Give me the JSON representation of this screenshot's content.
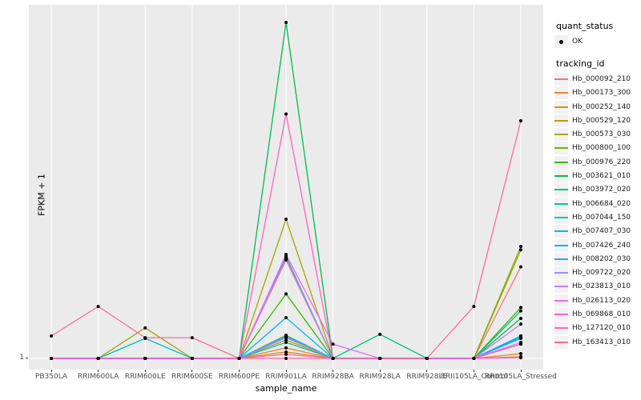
{
  "axes": {
    "y_title": "FPKM + 1",
    "x_title": "sample_name",
    "y_tick": "1"
  },
  "legend": {
    "quant_status": {
      "title": "quant_status",
      "items": [
        {
          "label": "OK",
          "symbol": "black-point"
        }
      ]
    },
    "tracking_id": {
      "title": "tracking_id"
    }
  },
  "colors": {
    "panel_background": "#EBEBEB",
    "gridline": "#FFFFFF",
    "point": "#000000",
    "axis_text": "#4d4d4d"
  },
  "chart_data": {
    "type": "line",
    "title": "",
    "xlabel": "sample_name",
    "ylabel": "FPKM + 1",
    "x_categories": [
      "PB350LA",
      "RRIM600LA",
      "RRIM600LE",
      "RRIM600SE",
      "RRIM600PE",
      "RRIM901LA",
      "RRIM928BA",
      "RRIM928LA",
      "RRIM928LE",
      "RRII105LA_Control",
      "RRII105LA_Stressed"
    ],
    "y_axis": {
      "tick_labels": [
        "1"
      ],
      "min": 1,
      "max_estimate": 100,
      "note": "only the tick '1' is labeled; values are relative estimates scaled so the tallest peak = 100"
    },
    "grid": "vertical-major-only",
    "legend_position": "right",
    "point_marker": {
      "shape": "filled-circle",
      "color": "#000000",
      "label": "OK"
    },
    "series": [
      {
        "name": "Hb_000092_210",
        "color": "#F8766D",
        "values": [
          1,
          1,
          1,
          1,
          1,
          30,
          1,
          1,
          1,
          1,
          28
        ]
      },
      {
        "name": "Hb_000173_300",
        "color": "#EA8331",
        "values": [
          1,
          1,
          1,
          1,
          1,
          4.1,
          1,
          1,
          1,
          1,
          2.4
        ]
      },
      {
        "name": "Hb_000252_140",
        "color": "#D89000",
        "values": [
          1,
          1,
          1,
          1,
          1,
          2.9,
          1,
          1,
          1,
          1,
          1.5
        ]
      },
      {
        "name": "Hb_000529_120",
        "color": "#C09B00",
        "values": [
          1,
          1,
          1,
          1,
          1,
          6.4,
          1,
          1,
          1,
          1,
          1.3
        ]
      },
      {
        "name": "Hb_000573_030",
        "color": "#A3A500",
        "values": [
          1,
          1,
          10,
          1,
          1,
          42,
          1,
          1,
          1,
          1,
          34
        ]
      },
      {
        "name": "Hb_000800_100",
        "color": "#7CAE00",
        "values": [
          1,
          1,
          1,
          1,
          1,
          7.8,
          1,
          1,
          1,
          1,
          33
        ]
      },
      {
        "name": "Hb_000976_220",
        "color": "#39B600",
        "values": [
          1,
          1,
          1,
          1,
          1,
          20,
          1,
          1,
          1,
          1,
          16
        ]
      },
      {
        "name": "Hb_003621_010",
        "color": "#00BB4E",
        "values": [
          1,
          1,
          1,
          1,
          1,
          100,
          1,
          1,
          1,
          1,
          12.8
        ]
      },
      {
        "name": "Hb_003972_020",
        "color": "#00BF7D",
        "values": [
          1,
          1,
          1,
          1,
          1,
          31,
          1,
          8.1,
          1,
          1,
          15
        ]
      },
      {
        "name": "Hb_006684_020",
        "color": "#00C1A3",
        "values": [
          1,
          1,
          1,
          1,
          1,
          30.7,
          1,
          1,
          1,
          1,
          7
        ]
      },
      {
        "name": "Hb_007044_150",
        "color": "#00BFC4",
        "values": [
          1,
          1,
          6.9,
          1,
          1,
          5.7,
          1,
          1,
          1,
          1,
          7.6
        ]
      },
      {
        "name": "Hb_007407_030",
        "color": "#00BAE0",
        "values": [
          1,
          1,
          1,
          1,
          1,
          7.3,
          1,
          1,
          1,
          1,
          7.3
        ]
      },
      {
        "name": "Hb_007426_240",
        "color": "#00B0F6",
        "values": [
          1,
          1,
          1,
          1,
          1,
          13,
          1,
          1,
          1,
          1,
          7.6
        ]
      },
      {
        "name": "Hb_008202_030",
        "color": "#35A2FF",
        "values": [
          1,
          1,
          1,
          1,
          1,
          7.6,
          1,
          1,
          1,
          1,
          6.9
        ]
      },
      {
        "name": "Hb_009722_020",
        "color": "#9590FF",
        "values": [
          1,
          1,
          1,
          1,
          1,
          7.1,
          1,
          1,
          1,
          1,
          5.2
        ]
      },
      {
        "name": "Hb_023813_010",
        "color": "#C77CFF",
        "values": [
          1,
          1,
          1,
          1,
          1,
          30.4,
          1,
          1,
          1,
          1,
          5.7
        ]
      },
      {
        "name": "Hb_026113_020",
        "color": "#E76BF3",
        "values": [
          1,
          1,
          1,
          1,
          1,
          31.6,
          5.2,
          1,
          1,
          1,
          11.1
        ]
      },
      {
        "name": "Hb_069868_010",
        "color": "#FA62DB",
        "values": [
          1,
          1,
          1,
          1,
          1,
          2.2,
          1,
          1,
          1,
          1,
          1.2
        ]
      },
      {
        "name": "Hb_127120_010",
        "color": "#FF62BC",
        "values": [
          1,
          1,
          1,
          1,
          1,
          73,
          1,
          1,
          1,
          1,
          5.2
        ]
      },
      {
        "name": "Hb_163413_010",
        "color": "#FF6A98",
        "values": [
          7.6,
          16.3,
          7.1,
          7.1,
          1,
          1,
          1,
          1,
          1,
          16.3,
          71
        ]
      }
    ]
  }
}
